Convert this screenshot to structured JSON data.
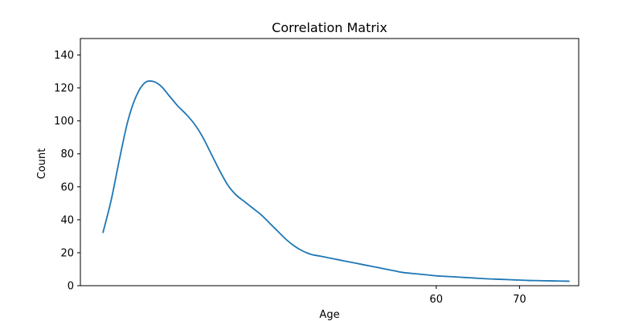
{
  "chart_data": {
    "type": "line",
    "title": "Correlation Matrix",
    "xlabel": "Age",
    "ylabel": "Count",
    "xlim": [
      17.3,
      77.1
    ],
    "ylim": [
      0,
      150
    ],
    "x_ticks": [
      60,
      70
    ],
    "y_ticks": [
      0,
      20,
      40,
      60,
      80,
      100,
      120,
      140
    ],
    "grid": false,
    "series": [
      {
        "color": "#1f77b4",
        "x": [
          20,
          21,
          22,
          23,
          24,
          25,
          26,
          27,
          28,
          29,
          30,
          31,
          32,
          33,
          34,
          35,
          36,
          37,
          38,
          39,
          40,
          41,
          42,
          43,
          44,
          45,
          46,
          47,
          48,
          49,
          50,
          51,
          52,
          53,
          54,
          55,
          56,
          57,
          58,
          59,
          60,
          61,
          62,
          63,
          64,
          65,
          66,
          67,
          68,
          69,
          70,
          71,
          72,
          73,
          74,
          75,
          76
        ],
        "y": [
          32,
          52,
          77,
          100,
          115,
          123,
          124,
          121,
          115,
          109,
          104,
          98,
          90,
          80,
          70,
          61,
          55,
          51,
          47,
          43,
          38,
          33,
          28,
          24,
          21,
          19,
          18,
          17,
          16,
          15,
          14,
          13,
          12,
          11,
          10,
          9,
          8,
          7.5,
          7,
          6.5,
          6,
          5.7,
          5.4,
          5.1,
          4.8,
          4.5,
          4.2,
          4,
          3.8,
          3.6,
          3.4,
          3.2,
          3.1,
          3,
          2.9,
          2.8,
          2.7
        ]
      }
    ]
  }
}
